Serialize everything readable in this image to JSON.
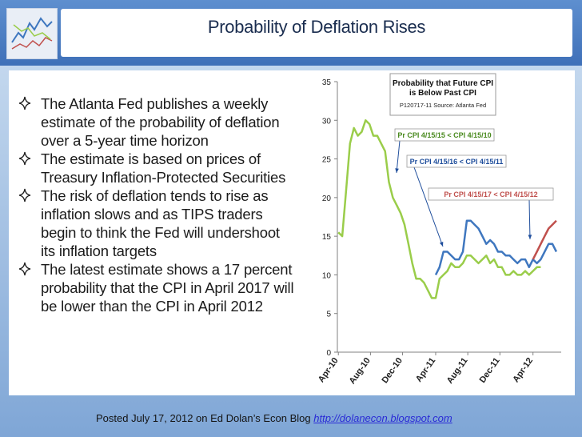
{
  "slide": {
    "title": "Probability of Deflation Rises",
    "bullets": [
      "The Atlanta Fed publishes a weekly estimate of the probability of deflation over a 5-year time horizon",
      "The estimate is based on prices of Treasury Inflation-Protected Securities",
      "The risk of deflation tends to rise as inflation slows and as TIPS traders begin to think the Fed will undershoot its inflation targets",
      "The latest estimate shows a 17 percent probability that the CPI in April 2017 will be lower than the CPI in April 2012"
    ]
  },
  "footer": {
    "text": "Posted July 17, 2012 on Ed Dolan’s Econ Blog",
    "link": "http://dolanecon.blogspot.com"
  },
  "colors": {
    "series_green": "#9acd4a",
    "series_blue": "#3f77bf",
    "series_red": "#c0504d",
    "annotation": "#1f4e9c"
  },
  "chart_data": {
    "type": "line",
    "title": "Probability that Future CPI is Below Past CPI",
    "subtitle": "P120717-11 Source: Atlanta Fed",
    "ylim": [
      0,
      35
    ],
    "yticks": [
      0,
      5,
      10,
      15,
      20,
      25,
      30,
      35
    ],
    "xlim": [
      "2010-04",
      "2012-07"
    ],
    "xticks": [
      "Apr-10",
      "Aug-10",
      "Dec-10",
      "Apr-11",
      "Aug-11",
      "Dec-11",
      "Apr-12"
    ],
    "grid": false,
    "series": [
      {
        "name": "Pr CPI 4/15/15 < CPI 4/15/10",
        "color": "#9acd4a",
        "x": [
          2010.26,
          2010.3,
          2010.34,
          2010.38,
          2010.42,
          2010.46,
          2010.5,
          2010.54,
          2010.58,
          2010.62,
          2010.66,
          2010.7,
          2010.74,
          2010.78,
          2010.82,
          2010.86,
          2010.9,
          2010.94,
          2010.98,
          2011.02,
          2011.06,
          2011.1,
          2011.14,
          2011.18,
          2011.22,
          2011.26,
          2011.3,
          2011.34,
          2011.38,
          2011.42,
          2011.46,
          2011.5,
          2011.54,
          2011.58,
          2011.62,
          2011.66,
          2011.7,
          2011.74,
          2011.78,
          2011.82,
          2011.86,
          2011.9,
          2011.94,
          2011.98,
          2012.02,
          2012.06,
          2012.1,
          2012.14,
          2012.18,
          2012.22,
          2012.26,
          2012.3,
          2012.34
        ],
        "y": [
          15.5,
          15,
          21,
          27,
          29,
          28,
          28.5,
          30,
          29.5,
          28,
          28,
          27,
          26,
          22,
          20,
          19,
          18,
          16.5,
          14,
          11.5,
          9.5,
          9.5,
          9,
          8,
          7,
          7,
          9.5,
          10,
          10.5,
          11.5,
          11,
          11,
          11.5,
          12.5,
          12.5,
          12,
          11.5,
          12,
          12.5,
          11.5,
          12,
          11,
          11,
          10,
          10,
          10.5,
          10,
          10,
          10.5,
          10,
          10.5,
          11,
          11
        ]
      },
      {
        "name": "Pr CPI 4/15/16 < CPI 4/15/11",
        "color": "#3f77bf",
        "x": [
          2011.26,
          2011.3,
          2011.34,
          2011.38,
          2011.42,
          2011.46,
          2011.5,
          2011.54,
          2011.58,
          2011.62,
          2011.66,
          2011.7,
          2011.74,
          2011.78,
          2011.82,
          2011.86,
          2011.9,
          2011.94,
          2011.98,
          2012.02,
          2012.06,
          2012.1,
          2012.14,
          2012.18,
          2012.22,
          2012.26,
          2012.3,
          2012.34,
          2012.38,
          2012.42,
          2012.46,
          2012.5
        ],
        "y": [
          10,
          11,
          13,
          13,
          12.5,
          12,
          12,
          13,
          17,
          17,
          16.5,
          16,
          15,
          14,
          14.5,
          14,
          13,
          13,
          12.5,
          12.5,
          12,
          11.5,
          12,
          12,
          11,
          12,
          11.5,
          12,
          13,
          14,
          14,
          13
        ]
      },
      {
        "name": "Pr CPI 4/15/17 < CPI 4/15/12",
        "color": "#c0504d",
        "x": [
          2012.26,
          2012.3,
          2012.34,
          2012.38,
          2012.42,
          2012.46,
          2012.5
        ],
        "y": [
          12,
          13,
          14,
          15,
          16,
          16.5,
          17
        ]
      }
    ],
    "annotations": [
      "Pr CPI 4/15/15 < CPI 4/15/10",
      "Pr CPI 4/15/16 < CPI 4/15/11",
      "Pr CPI 4/15/17 < CPI 4/15/12"
    ]
  }
}
